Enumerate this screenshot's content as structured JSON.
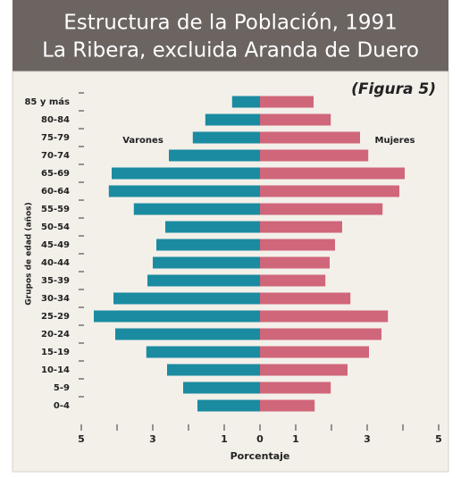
{
  "chart_data": {
    "type": "population_pyramid",
    "title": "Estructura de la Población, 1991",
    "subtitle": "La Ribera, excluida Aranda de Duero",
    "annotation": "(Figura 5)",
    "ylabel": "Grupos de edad (años)",
    "xlabel": "Porcentaje",
    "categories": [
      "85 y más",
      "80-84",
      "75-79",
      "70-74",
      "65-69",
      "60-64",
      "55-59",
      "50-54",
      "45-49",
      "40-44",
      "35-39",
      "30-34",
      "25-29",
      "20-24",
      "15-19",
      "10-14",
      "5-9",
      "0-4"
    ],
    "series": [
      {
        "name": "Varones",
        "side": "left",
        "color": "#1a8ba0",
        "values": [
          0.78,
          1.53,
          1.88,
          2.55,
          4.15,
          4.23,
          3.53,
          2.65,
          2.9,
          3.0,
          3.15,
          4.1,
          4.65,
          4.05,
          3.18,
          2.6,
          2.15,
          1.75
        ]
      },
      {
        "name": "Mujeres",
        "side": "right",
        "color": "#d0667a",
        "values": [
          1.5,
          1.98,
          2.8,
          3.03,
          4.05,
          3.9,
          3.43,
          2.3,
          2.1,
          1.95,
          1.83,
          2.53,
          3.58,
          3.4,
          3.05,
          2.45,
          1.98,
          1.53
        ]
      }
    ],
    "xlim": [
      0,
      5
    ],
    "xticks": [
      0,
      1,
      3,
      5
    ],
    "xticks_minor": [
      2,
      4
    ]
  }
}
